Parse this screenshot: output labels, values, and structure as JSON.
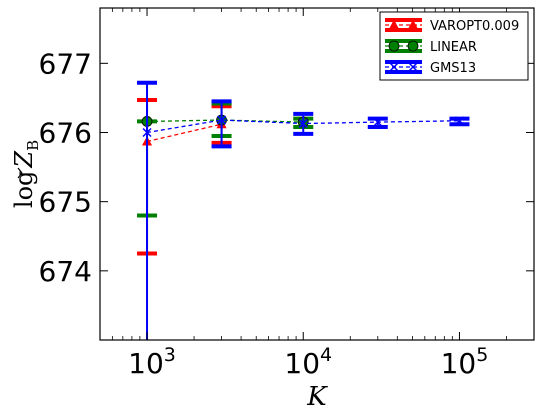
{
  "chart_data": {
    "type": "line",
    "title": "",
    "xlabel": "K",
    "ylabel": "log Z_B",
    "x_scale": "log",
    "xlim": [
      500,
      300000
    ],
    "ylim": [
      673.0,
      677.8
    ],
    "x_ticks": [
      {
        "value": 1000,
        "base": "10",
        "exp": "3"
      },
      {
        "value": 10000,
        "base": "10",
        "exp": "4"
      },
      {
        "value": 100000,
        "base": "10",
        "exp": "5"
      }
    ],
    "y_ticks": [
      674,
      675,
      676,
      677
    ],
    "y_tick_labels": [
      "674",
      "675",
      "676",
      "677"
    ],
    "grid": false,
    "legend_position": "top-right",
    "series": [
      {
        "name": "VAROPT0.009",
        "color": "#ff0000",
        "marker": "triangle",
        "points": [
          {
            "x": 1000,
            "y": 675.87,
            "lo": 674.25,
            "hi": 676.47
          },
          {
            "x": 3000,
            "y": 676.12,
            "lo": 675.85,
            "hi": 676.38
          }
        ]
      },
      {
        "name": "LINEAR",
        "color": "#008000",
        "marker": "circle",
        "points": [
          {
            "x": 1000,
            "y": 676.16,
            "lo": 674.8,
            "hi": 676.16
          },
          {
            "x": 3000,
            "y": 676.18,
            "lo": 675.95,
            "hi": 676.42
          },
          {
            "x": 10000,
            "y": 676.15,
            "lo": 676.08,
            "hi": 676.2
          }
        ]
      },
      {
        "name": "GMS13",
        "color": "#0000ff",
        "marker": "x",
        "points": [
          {
            "x": 1000,
            "y": 676.0,
            "lo": 672.8,
            "hi": 676.72
          },
          {
            "x": 3000,
            "y": 676.18,
            "lo": 675.8,
            "hi": 676.45
          },
          {
            "x": 10000,
            "y": 676.13,
            "lo": 675.98,
            "hi": 676.27
          },
          {
            "x": 30000,
            "y": 676.15,
            "lo": 676.08,
            "hi": 676.2
          },
          {
            "x": 100000,
            "y": 676.17,
            "lo": 676.12,
            "hi": 676.2
          }
        ]
      }
    ]
  }
}
